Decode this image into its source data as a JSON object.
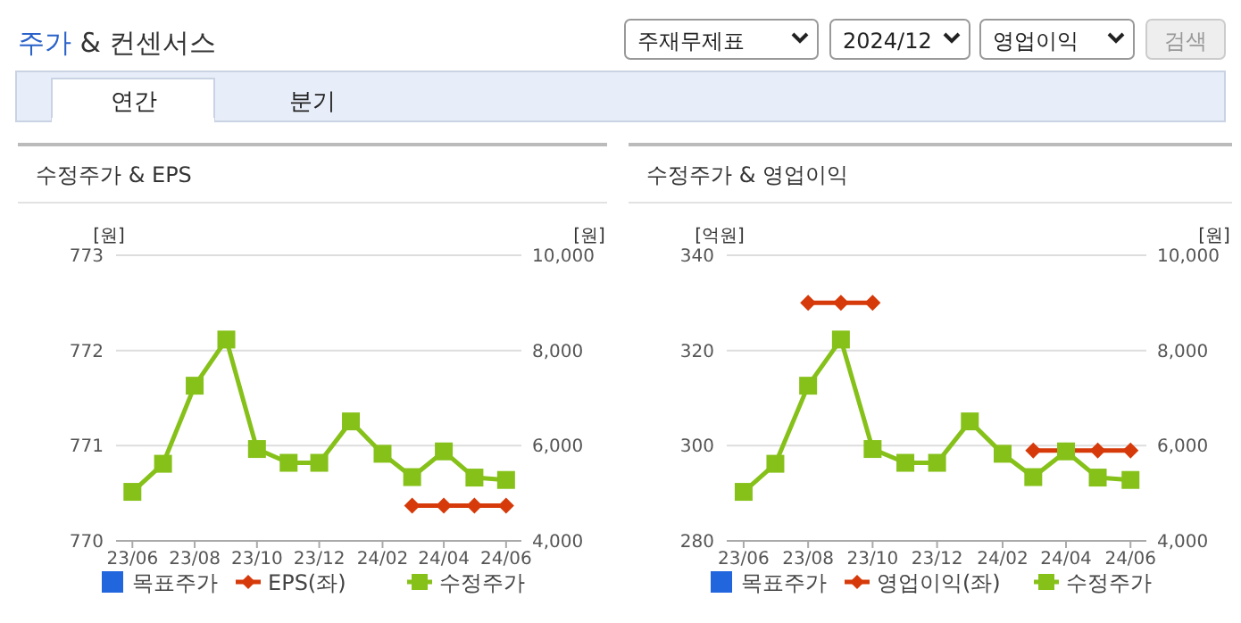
{
  "chart_data": [
    {
      "type": "other",
      "title": "주가 & 컨센서스",
      "annotations": [
        "주재무제표",
        "2024/12",
        "영업이익",
        "검색",
        "연간",
        "분기"
      ]
    },
    {
      "type": "line",
      "title": "수정주가 & EPS",
      "ylabel": "[원]",
      "y2label": "[원]",
      "x": [
        "2023-06",
        "2023-07",
        "2023-08",
        "2023-09",
        "2023-10",
        "2023-11",
        "2023-12",
        "2024-01",
        "2024-02",
        "2024-03",
        "2024-04",
        "2024-05",
        "2024-06"
      ],
      "xlim": [
        "2023-05-16",
        "2024-06-16"
      ],
      "xticks": [
        {
          "value": "2023-06",
          "label": "23/06"
        },
        {
          "value": "2023-08",
          "label": "23/08"
        },
        {
          "value": "2023-10",
          "label": "23/10"
        },
        {
          "value": "2023-12",
          "label": "23/12"
        },
        {
          "value": "2024-02",
          "label": "24/02"
        },
        {
          "value": "2024-04",
          "label": "24/04"
        },
        {
          "value": "2024-06",
          "label": "24/06"
        }
      ],
      "ylim": [
        770,
        773
      ],
      "yticks": [
        770,
        771,
        772,
        773
      ],
      "y2lim": [
        4000,
        10000
      ],
      "y2ticks": [
        {
          "value": 4000,
          "label": "4,000"
        },
        {
          "value": 6000,
          "label": "6,000"
        },
        {
          "value": 8000,
          "label": "8,000"
        },
        {
          "value": 10000,
          "label": "10,000"
        }
      ],
      "grid": "y",
      "legend": "bottom",
      "series": [
        {
          "name": "목표주가",
          "color": "#2266dd",
          "marker": "square",
          "line_style": "none",
          "values": [
            null,
            null,
            null,
            null,
            null,
            null,
            null,
            null,
            null,
            null,
            null,
            null,
            null
          ]
        },
        {
          "name": "EPS(좌)",
          "color": "#d63a0a",
          "marker": "diamond",
          "line_style": "solid",
          "values": [
            null,
            null,
            null,
            null,
            null,
            null,
            null,
            null,
            null,
            770.37,
            770.37,
            770.37,
            770.37
          ]
        },
        {
          "name": "수정주가",
          "color": "#86c11a",
          "marker": "square",
          "line_style": "solid",
          "axis": "y2",
          "values": [
            5030,
            5620,
            7260,
            8230,
            5930,
            5640,
            5640,
            6510,
            5830,
            5340,
            5880,
            5330,
            5280
          ]
        }
      ]
    },
    {
      "type": "line",
      "title": "수정주가 & 영업이익",
      "ylabel": "[억원]",
      "y2label": "[원]",
      "x": [
        "2023-06",
        "2023-07",
        "2023-08",
        "2023-09",
        "2023-10",
        "2023-11",
        "2023-12",
        "2024-01",
        "2024-02",
        "2024-03",
        "2024-04",
        "2024-05",
        "2024-06"
      ],
      "xlim": [
        "2023-05-16",
        "2024-06-16"
      ],
      "xticks": [
        {
          "value": "2023-06",
          "label": "23/06"
        },
        {
          "value": "2023-08",
          "label": "23/08"
        },
        {
          "value": "2023-10",
          "label": "23/10"
        },
        {
          "value": "2023-12",
          "label": "23/12"
        },
        {
          "value": "2024-02",
          "label": "24/02"
        },
        {
          "value": "2024-04",
          "label": "24/04"
        },
        {
          "value": "2024-06",
          "label": "24/06"
        }
      ],
      "ylim": [
        280,
        340
      ],
      "yticks": [
        280,
        300,
        320,
        340
      ],
      "y2lim": [
        4000,
        10000
      ],
      "y2ticks": [
        {
          "value": 4000,
          "label": "4,000"
        },
        {
          "value": 6000,
          "label": "6,000"
        },
        {
          "value": 8000,
          "label": "8,000"
        },
        {
          "value": 10000,
          "label": "10,000"
        }
      ],
      "grid": "y",
      "legend": "bottom",
      "series": [
        {
          "name": "목표주가",
          "color": "#2266dd",
          "marker": "square",
          "line_style": "none",
          "values": [
            null,
            null,
            null,
            null,
            null,
            null,
            null,
            null,
            null,
            null,
            null,
            null,
            null
          ]
        },
        {
          "name": "영업이익(좌)",
          "color": "#d63a0a",
          "marker": "diamond",
          "line_style": "solid",
          "values": [
            null,
            null,
            330,
            330,
            330,
            null,
            null,
            null,
            null,
            299,
            299,
            299,
            299
          ]
        },
        {
          "name": "수정주가",
          "color": "#86c11a",
          "marker": "square",
          "line_style": "solid",
          "axis": "y2",
          "values": [
            5030,
            5620,
            7260,
            8230,
            5930,
            5640,
            5640,
            6510,
            5830,
            5340,
            5880,
            5330,
            5280
          ]
        }
      ]
    }
  ]
}
